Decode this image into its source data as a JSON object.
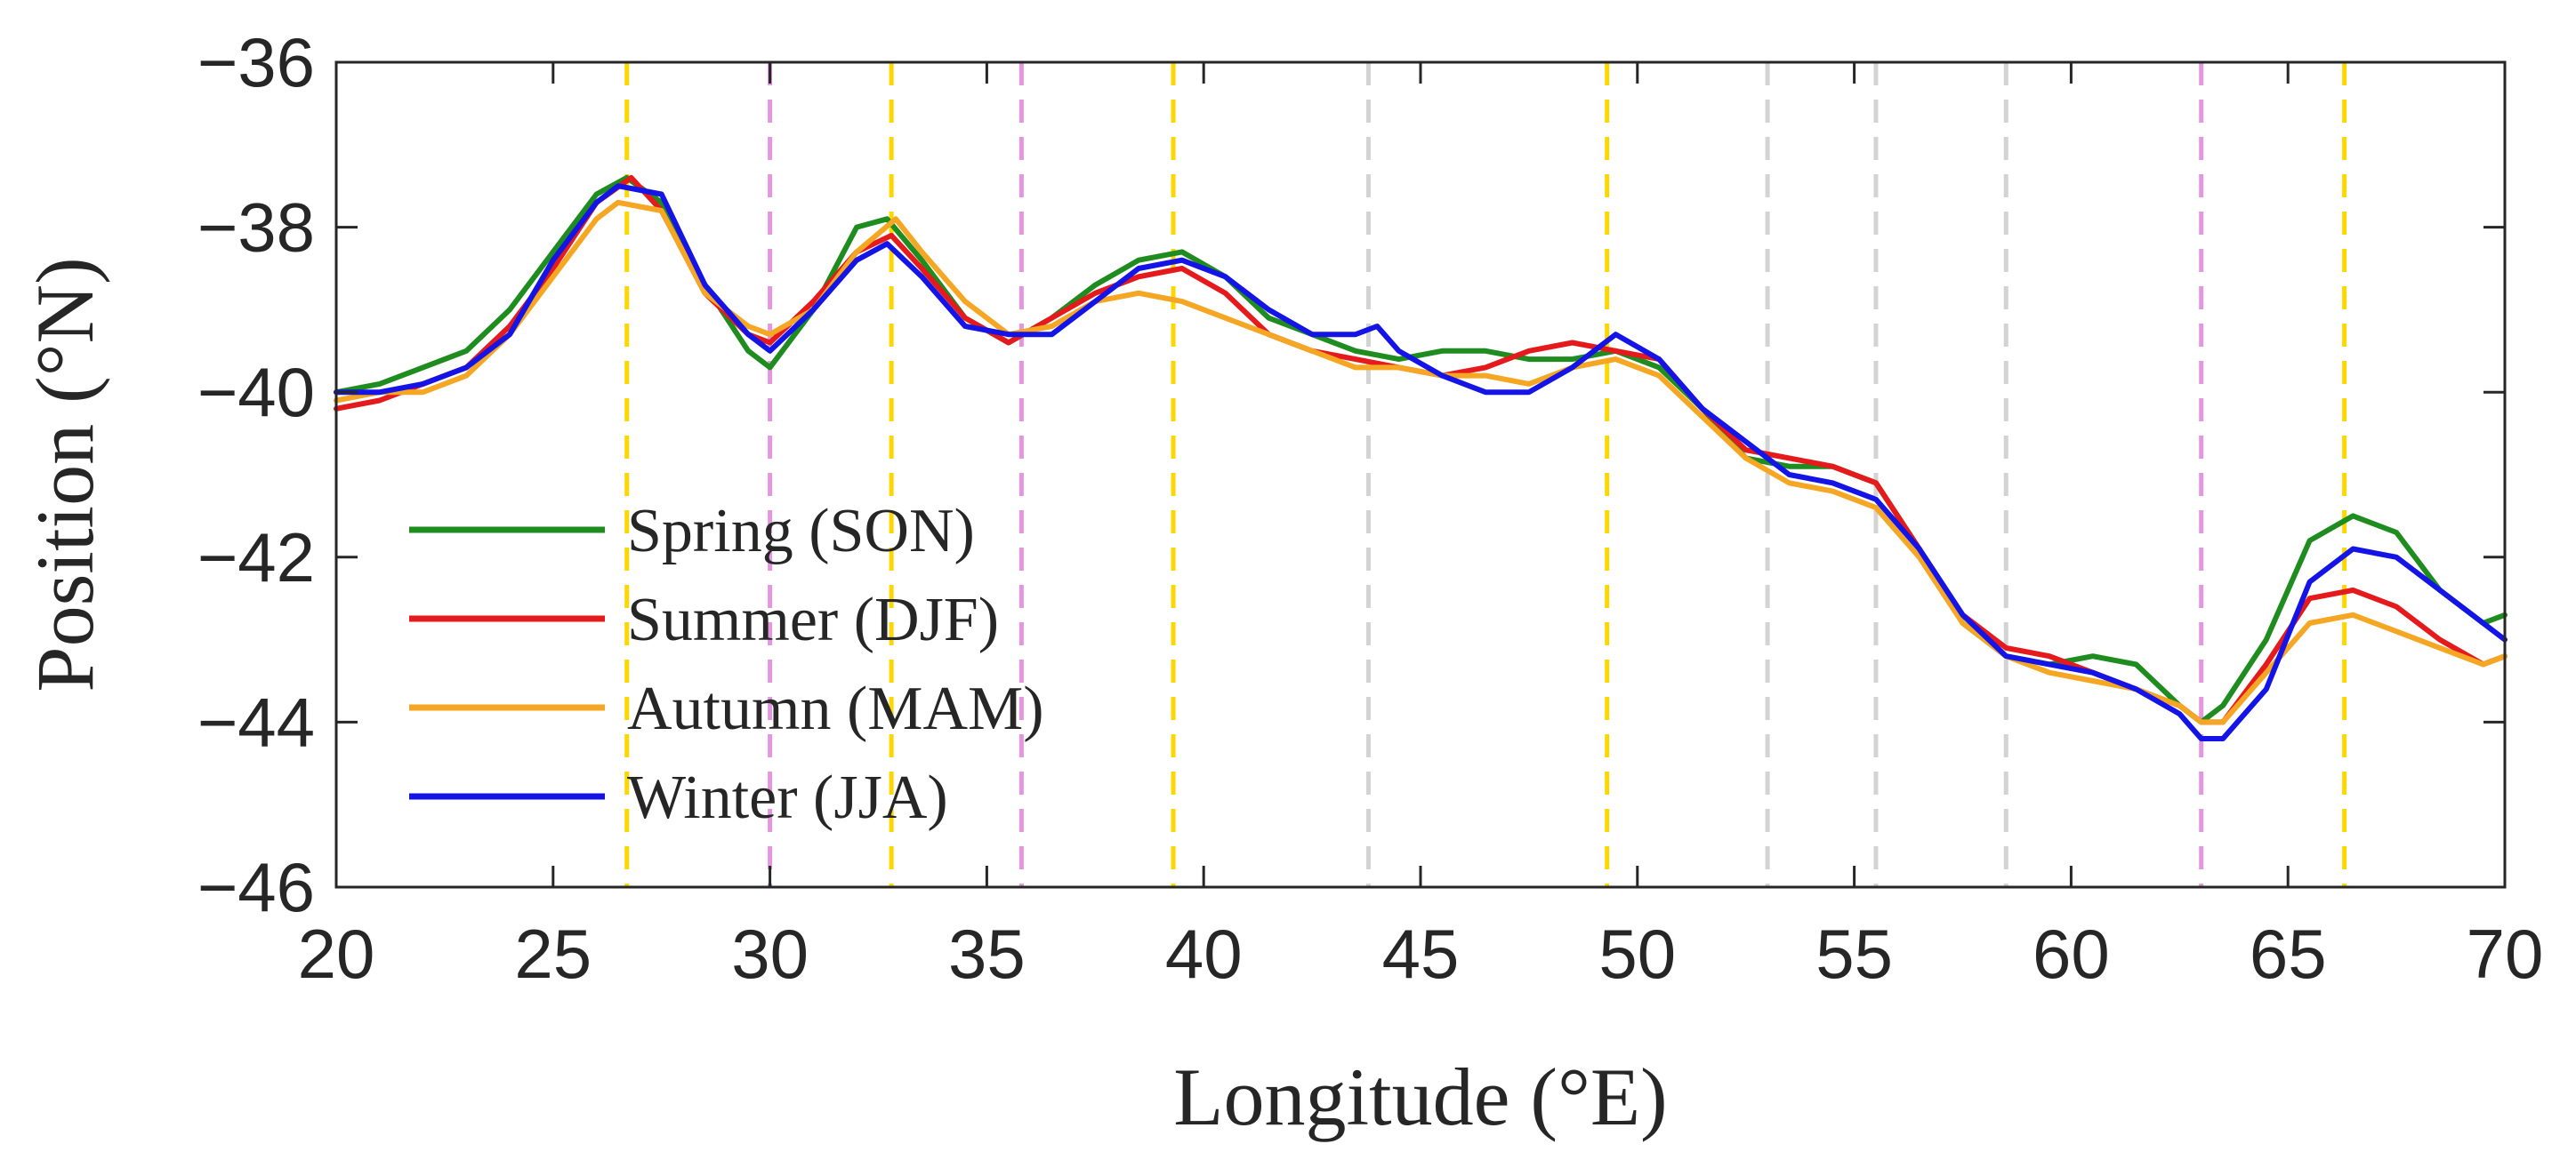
{
  "chart_data": {
    "type": "line",
    "title": "",
    "xlabel": "Longitude (°E)",
    "ylabel": "Position (°N)",
    "xlim": [
      20,
      70
    ],
    "ylim": [
      -46,
      -36
    ],
    "xticks": [
      20,
      25,
      30,
      35,
      40,
      45,
      50,
      55,
      60,
      65,
      70
    ],
    "xtick_labels": [
      "20",
      "25",
      "30",
      "35",
      "40",
      "45",
      "50",
      "55",
      "60",
      "65",
      "70"
    ],
    "yticks": [
      -46,
      -44,
      -42,
      -40,
      -38,
      -36
    ],
    "ytick_labels": [
      "−46",
      "−44",
      "−42",
      "−40",
      "−38",
      "−36"
    ],
    "grid": false,
    "legend_position": "bottom-left",
    "vertical_reference_lines": [
      {
        "x": 26.7,
        "color": "#FFD700"
      },
      {
        "x": 30.0,
        "color": "#E596E0"
      },
      {
        "x": 32.8,
        "color": "#FFD700"
      },
      {
        "x": 35.8,
        "color": "#E596E0"
      },
      {
        "x": 39.3,
        "color": "#FFD700"
      },
      {
        "x": 43.8,
        "color": "#D3D3D3"
      },
      {
        "x": 49.3,
        "color": "#FFD700"
      },
      {
        "x": 53.0,
        "color": "#D3D3D3"
      },
      {
        "x": 55.5,
        "color": "#D3D3D3"
      },
      {
        "x": 58.5,
        "color": "#D3D3D3"
      },
      {
        "x": 63.0,
        "color": "#E596E0"
      },
      {
        "x": 66.3,
        "color": "#FFD700"
      }
    ],
    "series": [
      {
        "name": "Spring (SON)",
        "color": "#1E8C1E",
        "x": [
          20,
          21,
          22,
          23,
          24,
          25,
          26,
          26.7,
          27.5,
          28.5,
          29.5,
          30,
          31,
          32,
          32.7,
          33.5,
          34.5,
          35.5,
          36.5,
          37.5,
          38.5,
          39.5,
          40.5,
          41.5,
          42.5,
          43.5,
          44.5,
          45.5,
          46.5,
          47.5,
          48.5,
          49.5,
          50.5,
          51.5,
          52.5,
          53.5,
          54.5,
          55.5,
          56.5,
          57.5,
          58.5,
          59.5,
          60.5,
          61.5,
          62.5,
          63,
          63.5,
          64.5,
          65.5,
          66.5,
          67.5,
          68.5,
          69.5,
          70
        ],
        "values": [
          -40.0,
          -39.9,
          -39.7,
          -39.5,
          -39.0,
          -38.3,
          -37.6,
          -37.4,
          -37.7,
          -38.7,
          -39.5,
          -39.7,
          -39.0,
          -38.0,
          -37.9,
          -38.4,
          -39.1,
          -39.4,
          -39.1,
          -38.7,
          -38.4,
          -38.3,
          -38.6,
          -39.1,
          -39.3,
          -39.5,
          -39.6,
          -39.5,
          -39.5,
          -39.6,
          -39.6,
          -39.5,
          -39.7,
          -40.2,
          -40.8,
          -40.9,
          -40.9,
          -41.1,
          -41.9,
          -42.8,
          -43.2,
          -43.3,
          -43.2,
          -43.3,
          -43.8,
          -44.0,
          -43.8,
          -43.0,
          -41.8,
          -41.5,
          -41.7,
          -42.4,
          -42.8,
          -42.7
        ]
      },
      {
        "name": "Summer (DJF)",
        "color": "#E41A1C",
        "x": [
          20,
          21,
          22,
          23,
          24,
          25,
          26,
          26.8,
          27.5,
          28.5,
          29.5,
          30,
          31,
          32,
          32.8,
          33.5,
          34.5,
          35.5,
          36.5,
          37.5,
          38.5,
          39.5,
          40.5,
          41.5,
          42.5,
          43.5,
          44.5,
          45.5,
          46.5,
          47.5,
          48.5,
          49.5,
          50.5,
          51.5,
          52.5,
          53.5,
          54.5,
          55.5,
          56.5,
          57.5,
          58.5,
          59.5,
          60.5,
          61.5,
          62.5,
          63,
          63.5,
          64.5,
          65.5,
          66.5,
          67.5,
          68.5,
          69.5,
          70
        ],
        "values": [
          -40.2,
          -40.1,
          -39.9,
          -39.7,
          -39.2,
          -38.5,
          -37.7,
          -37.4,
          -37.8,
          -38.8,
          -39.3,
          -39.4,
          -38.9,
          -38.3,
          -38.1,
          -38.5,
          -39.1,
          -39.4,
          -39.1,
          -38.8,
          -38.6,
          -38.5,
          -38.8,
          -39.3,
          -39.5,
          -39.6,
          -39.7,
          -39.8,
          -39.7,
          -39.5,
          -39.4,
          -39.5,
          -39.6,
          -40.2,
          -40.7,
          -40.8,
          -40.9,
          -41.1,
          -41.9,
          -42.7,
          -43.1,
          -43.2,
          -43.4,
          -43.6,
          -43.8,
          -44.0,
          -44.0,
          -43.3,
          -42.5,
          -42.4,
          -42.6,
          -43.0,
          -43.3,
          -43.2
        ]
      },
      {
        "name": "Autumn (MAM)",
        "color": "#F5A623",
        "x": [
          20,
          21,
          22,
          23,
          24,
          25,
          26,
          26.5,
          27.5,
          28.5,
          29.5,
          30,
          31,
          32,
          32.9,
          33.5,
          34.5,
          35.5,
          36.5,
          37.5,
          38.5,
          39.5,
          40.5,
          41.5,
          42.5,
          43.5,
          44.5,
          45.5,
          46.5,
          47.5,
          48.5,
          49.5,
          50.5,
          51.5,
          52.5,
          53.5,
          54.5,
          55.5,
          56.5,
          57.5,
          58.5,
          59.5,
          60.5,
          61.5,
          62.5,
          63,
          63.5,
          64.5,
          65.5,
          66.5,
          67.5,
          68.5,
          69.5,
          70
        ],
        "values": [
          -40.1,
          -40.0,
          -40.0,
          -39.8,
          -39.3,
          -38.6,
          -37.9,
          -37.7,
          -37.8,
          -38.8,
          -39.2,
          -39.3,
          -39.0,
          -38.3,
          -37.9,
          -38.3,
          -38.9,
          -39.3,
          -39.2,
          -38.9,
          -38.8,
          -38.9,
          -39.1,
          -39.3,
          -39.5,
          -39.7,
          -39.7,
          -39.8,
          -39.8,
          -39.9,
          -39.7,
          -39.6,
          -39.8,
          -40.3,
          -40.8,
          -41.1,
          -41.2,
          -41.4,
          -42.0,
          -42.8,
          -43.2,
          -43.4,
          -43.5,
          -43.6,
          -43.8,
          -44.0,
          -44.0,
          -43.4,
          -42.8,
          -42.7,
          -42.9,
          -43.1,
          -43.3,
          -43.2
        ]
      },
      {
        "name": "Winter (JJA)",
        "color": "#1414E6",
        "x": [
          20,
          21,
          22,
          23,
          24,
          25,
          26,
          26.5,
          27.5,
          28.5,
          29.5,
          30,
          31,
          32,
          32.7,
          33.5,
          34.5,
          35.5,
          36.5,
          37.5,
          38.5,
          39.5,
          40.5,
          41.5,
          42.5,
          43.5,
          44,
          44.5,
          45.5,
          46.5,
          47.5,
          48.5,
          49.5,
          50.5,
          51.5,
          52.5,
          53.5,
          54.5,
          55.5,
          56.5,
          57.5,
          58.5,
          59.5,
          60.5,
          61.5,
          62.5,
          63,
          63.5,
          64.5,
          65.5,
          66.5,
          67.5,
          68.5,
          69.5,
          70
        ],
        "values": [
          -40.0,
          -40.0,
          -39.9,
          -39.7,
          -39.3,
          -38.4,
          -37.7,
          -37.5,
          -37.6,
          -38.7,
          -39.3,
          -39.5,
          -39.0,
          -38.4,
          -38.2,
          -38.6,
          -39.2,
          -39.3,
          -39.3,
          -38.9,
          -38.5,
          -38.4,
          -38.6,
          -39.0,
          -39.3,
          -39.3,
          -39.2,
          -39.5,
          -39.8,
          -40.0,
          -40.0,
          -39.7,
          -39.3,
          -39.6,
          -40.2,
          -40.6,
          -41.0,
          -41.1,
          -41.3,
          -41.9,
          -42.7,
          -43.2,
          -43.3,
          -43.4,
          -43.6,
          -43.9,
          -44.2,
          -44.2,
          -43.6,
          -42.3,
          -41.9,
          -42.0,
          -42.4,
          -42.8,
          -43.0
        ]
      }
    ]
  }
}
